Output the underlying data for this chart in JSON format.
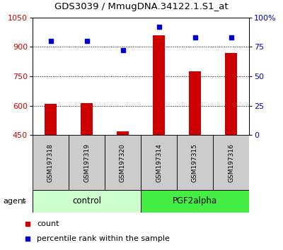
{
  "title": "GDS3039 / MmugDNA.34122.1.S1_at",
  "samples": [
    "GSM197318",
    "GSM197319",
    "GSM197320",
    "GSM197314",
    "GSM197315",
    "GSM197316"
  ],
  "groups": [
    "control",
    "control",
    "control",
    "PGF2alpha",
    "PGF2alpha",
    "PGF2alpha"
  ],
  "counts": [
    610,
    612,
    470,
    960,
    775,
    870
  ],
  "percentile_ranks": [
    80,
    80,
    72,
    92,
    83,
    83
  ],
  "ylim_left": [
    450,
    1050
  ],
  "ylim_right": [
    0,
    100
  ],
  "yticks_left": [
    450,
    600,
    750,
    900,
    1050
  ],
  "yticks_right": [
    0,
    25,
    50,
    75,
    100
  ],
  "bar_color": "#cc0000",
  "dot_color": "#0000cc",
  "control_color": "#ccffcc",
  "pgf2alpha_color": "#44ee44",
  "sample_box_color": "#cccccc",
  "grid_color": "#000000",
  "left_tick_color": "#cc0000",
  "right_tick_color": "#0000cc",
  "agent_label": "agent",
  "legend_count_label": "count",
  "legend_pct_label": "percentile rank within the sample",
  "gridlines_at": [
    600,
    750,
    900
  ]
}
